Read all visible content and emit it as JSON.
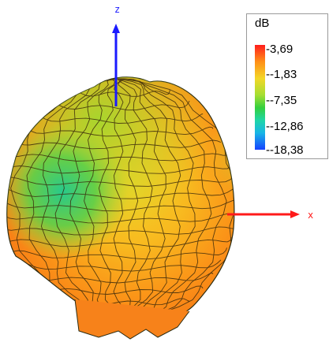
{
  "axes": {
    "z_label": "z",
    "x_label": "x"
  },
  "legend": {
    "title": "dB",
    "ticks": [
      "-3,69",
      "--1,83",
      "--7,35",
      "--12,86",
      "--18,38"
    ],
    "colors": [
      "#ff1d1d",
      "#ff8f17",
      "#f3d727",
      "#a4de32",
      "#33cf3d",
      "#1fd6a7",
      "#18b6e6",
      "#1642ff"
    ]
  },
  "pattern": {
    "colors": {
      "outline": "#2a2a10",
      "axis_z": "#1a1aff",
      "axis_x": "#ff1a1a"
    }
  }
}
